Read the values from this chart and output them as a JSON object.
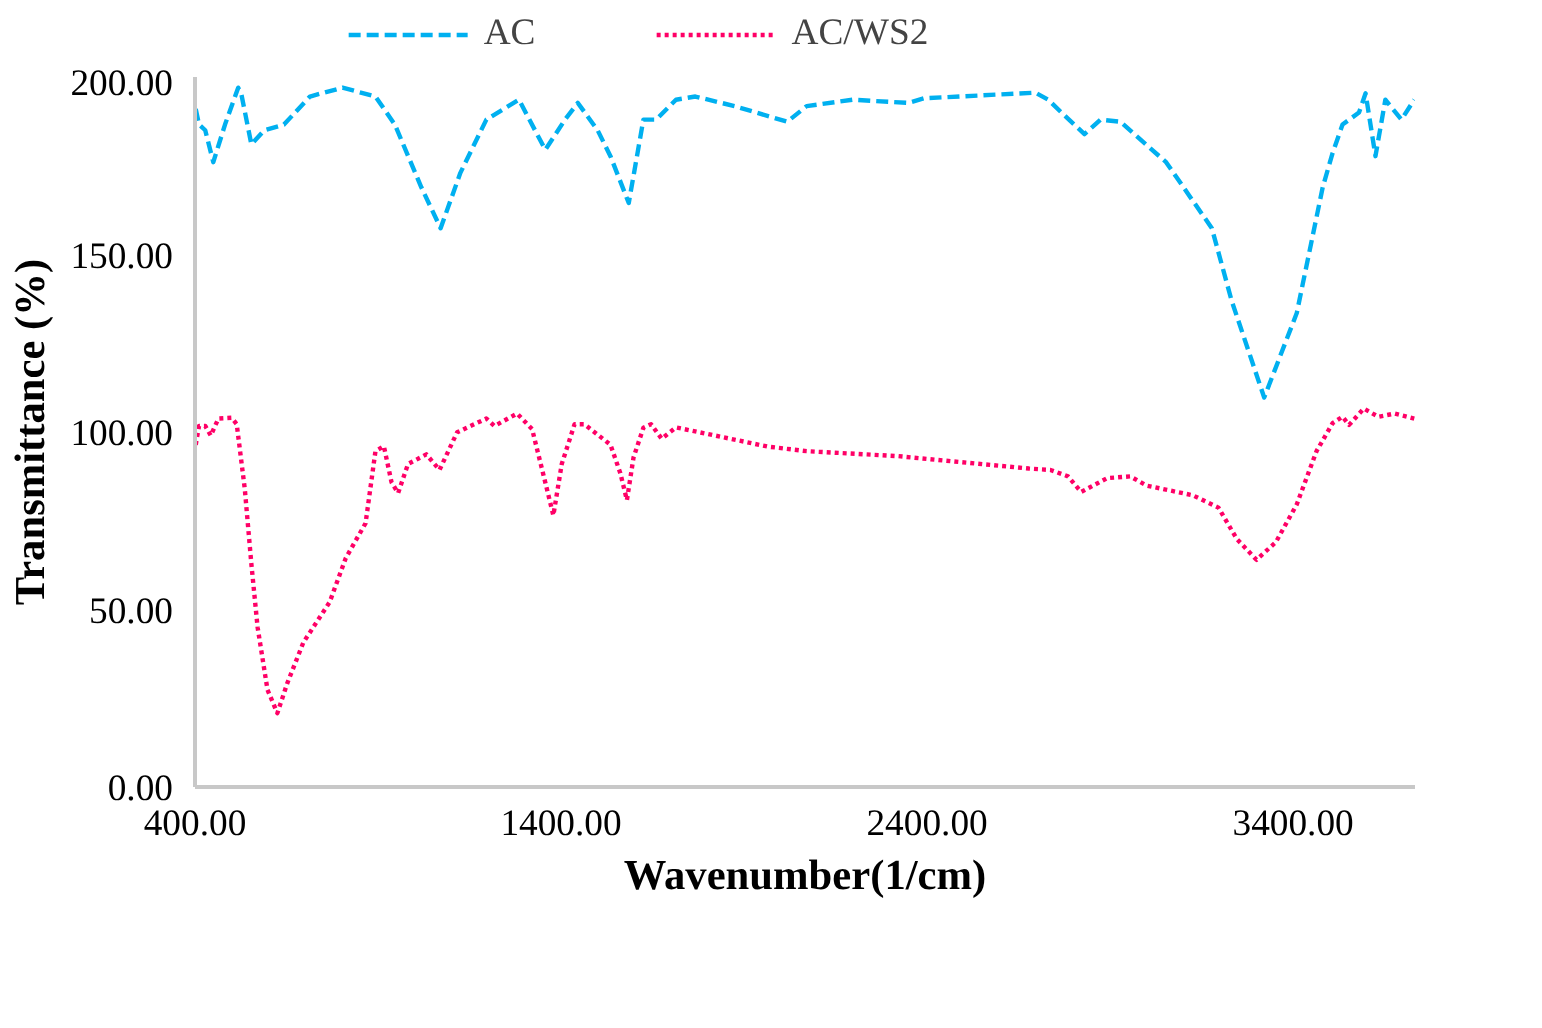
{
  "chart_data": {
    "type": "line",
    "xlabel": "Wavenumber(1/cm)",
    "ylabel": "Transmittance (%)",
    "xlim": [
      400,
      3733
    ],
    "xticks": [
      {
        "value": 400,
        "label": "400.00"
      },
      {
        "value": 1400,
        "label": "1400.00"
      },
      {
        "value": 2400,
        "label": "2400.00"
      },
      {
        "value": 3400,
        "label": "3400.00"
      }
    ],
    "ylim": [
      0,
      200
    ],
    "yticks": [
      {
        "value": 0,
        "label": "0.00"
      },
      {
        "value": 50,
        "label": "50.00"
      },
      {
        "value": 100,
        "label": "100.00"
      },
      {
        "value": 150,
        "label": "150.00"
      },
      {
        "value": 200,
        "label": "200.00"
      }
    ],
    "grid": false,
    "legend": "top",
    "marker": "none",
    "series": [
      {
        "name": "AC",
        "color": "#00b0f0",
        "line_style": "dashed",
        "x": [
          402,
          411,
          428,
          450,
          482,
          518,
          527,
          554,
          589,
          643,
          714,
          803,
          893,
          946,
          1018,
          1071,
          1125,
          1196,
          1285,
          1357,
          1411,
          1446,
          1500,
          1535,
          1585,
          1625,
          1660,
          1714,
          1767,
          1874,
          2018,
          2071,
          2196,
          2348,
          2392,
          2696,
          2731,
          2767,
          2830,
          2874,
          2928,
          3053,
          3178,
          3232,
          3321,
          3410,
          3481,
          3508,
          3535,
          3580,
          3598,
          3625,
          3652,
          3696,
          3731
        ],
        "values": [
          191,
          186.6,
          185,
          176,
          186.6,
          197,
          195,
          181,
          185,
          186.6,
          194.5,
          197,
          194.5,
          186.6,
          169,
          157.4,
          173,
          188,
          193.6,
          179.5,
          188,
          192.7,
          185,
          177.7,
          164.5,
          188,
          188,
          193.6,
          194.5,
          191.8,
          187.4,
          191.8,
          193.6,
          192.7,
          194,
          195.6,
          193.6,
          190,
          183.9,
          188,
          187.4,
          176,
          157.4,
          137,
          109.7,
          133.5,
          169,
          178.6,
          186.6,
          190,
          195.4,
          177.7,
          193.6,
          188,
          193.6
        ]
      },
      {
        "name": "AC/WS2",
        "color": "#ff0066",
        "line_style": "dotted",
        "x": [
          402,
          411,
          428,
          443,
          464,
          500,
          514,
          536,
          554,
          571,
          598,
          625,
          652,
          696,
          768,
          812,
          866,
          893,
          916,
          937,
          955,
          982,
          1032,
          1068,
          1116,
          1196,
          1218,
          1280,
          1321,
          1357,
          1379,
          1402,
          1437,
          1464,
          1535,
          1562,
          1580,
          1598,
          1625,
          1646,
          1675,
          1714,
          1821,
          1964,
          2071,
          2321,
          2678,
          2737,
          2785,
          2821,
          2892,
          2955,
          3000,
          3125,
          3196,
          3246,
          3300,
          3353,
          3410,
          3464,
          3508,
          3535,
          3553,
          3593,
          3633,
          3678,
          3731
        ],
        "values": [
          96.4,
          101.7,
          101.7,
          99,
          103.8,
          104,
          102.2,
          84,
          62.8,
          45,
          27.4,
          20.8,
          29.2,
          40.7,
          52.1,
          64.5,
          74.3,
          94.6,
          96,
          85.8,
          82.8,
          91,
          93.7,
          89.3,
          99.9,
          103.8,
          101.7,
          105.2,
          100.8,
          85.8,
          76.5,
          91,
          102.2,
          102.2,
          96.4,
          88.4,
          80.8,
          92.8,
          101.2,
          102.2,
          98.1,
          101.3,
          99,
          95.9,
          94.6,
          93.2,
          89.7,
          89.3,
          87.5,
          83.1,
          87,
          87.5,
          84.9,
          82.2,
          78.7,
          69.9,
          64,
          69,
          79.6,
          94.6,
          102.5,
          104.3,
          102,
          106.6,
          104.3,
          105.2,
          103.8
        ]
      }
    ]
  }
}
